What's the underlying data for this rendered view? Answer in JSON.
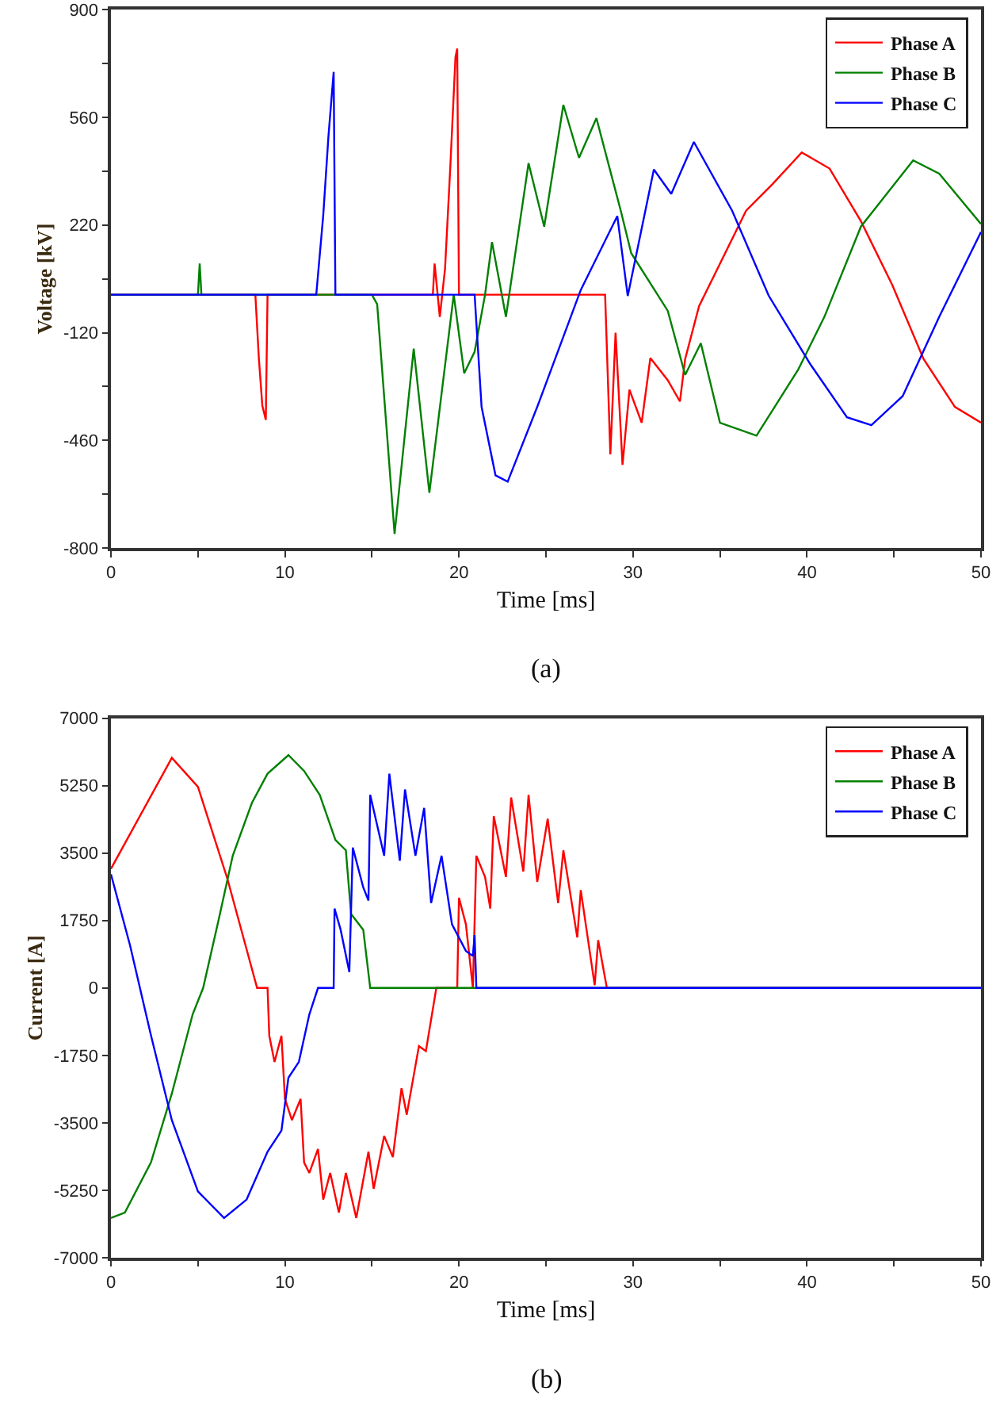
{
  "chart_data": [
    {
      "type": "line",
      "xlabel": "Time [ms]",
      "ylabel": "Voltage [kV]",
      "annotations": [
        "(a)"
      ],
      "legend": "top right",
      "xlim": [
        0,
        50
      ],
      "xticks": [
        0,
        {
          "value": 5,
          "label": null
        },
        10,
        {
          "value": 15,
          "label": null
        },
        20,
        {
          "value": 25,
          "label": null
        },
        30,
        {
          "value": 35,
          "label": null
        },
        40,
        {
          "value": 45,
          "label": null
        },
        50
      ],
      "ylim": [
        -800,
        900
      ],
      "yticks": [
        -800,
        {
          "value": -630,
          "label": null
        },
        -460,
        {
          "value": -290,
          "label": null
        },
        -120,
        {
          "value": 50,
          "label": null
        },
        220,
        {
          "value": 390,
          "label": null
        },
        560,
        {
          "value": 730,
          "label": null
        },
        900
      ],
      "series": [
        {
          "name": "Phase A",
          "color": "#ff0000",
          "x": [
            0,
            8.3,
            8.5,
            8.7,
            8.9,
            9.0,
            18.5,
            18.6,
            18.9,
            19.2,
            19.5,
            19.8,
            19.9,
            20.0,
            28.4,
            28.7,
            29.0,
            29.4,
            29.8,
            30.5,
            31.0,
            32.0,
            32.7,
            33.0,
            33.8,
            35.0,
            36.5,
            38.0,
            39.7,
            41.3,
            43.1,
            44.9,
            46.7,
            48.5,
            50
          ],
          "values": [
            0,
            0,
            -200,
            -350,
            -395,
            0,
            0,
            98,
            -70,
            82,
            400,
            750,
            777,
            0,
            0,
            -504,
            -120,
            -537,
            -300,
            -404,
            -200,
            -270,
            -337,
            -203,
            -36,
            98,
            265,
            348,
            449,
            398,
            232,
            31,
            -203,
            -354,
            -404
          ]
        },
        {
          "name": "Phase B",
          "color": "#008000",
          "x": [
            0,
            3.0,
            5.0,
            5.1,
            5.2,
            15.0,
            15.3,
            16.3,
            17.4,
            18.3,
            19.7,
            20.3,
            20.9,
            21.5,
            21.9,
            22.7,
            24.0,
            24.9,
            26.0,
            26.9,
            27.9,
            29.3,
            29.9,
            32.0,
            33.0,
            33.9,
            35.0,
            37.1,
            39.5,
            41.0,
            43.1,
            46.1,
            47.6,
            50
          ],
          "values": [
            0,
            0,
            0,
            98,
            0,
            0,
            -30,
            -755,
            -170,
            -625,
            0,
            -248,
            -180,
            0,
            166,
            -70,
            415,
            215,
            599,
            432,
            557,
            265,
            131,
            -51,
            -253,
            -153,
            -404,
            -445,
            -236,
            -70,
            215,
            424,
            382,
            223
          ]
        },
        {
          "name": "Phase C",
          "color": "#0000ff",
          "x": [
            0,
            11.8,
            12.2,
            12.5,
            12.8,
            12.9,
            20.9,
            21.3,
            22.1,
            22.8,
            24.5,
            27.0,
            29.1,
            29.7,
            31.2,
            32.2,
            33.5,
            35.7,
            37.8,
            40.2,
            42.3,
            43.7,
            45.5,
            47.6,
            50
          ],
          "values": [
            0,
            0,
            250,
            500,
            703,
            0,
            0,
            -354,
            -570,
            -590,
            -354,
            15,
            248,
            -4,
            395,
            318,
            482,
            265,
            -3,
            -220,
            -387,
            -412,
            -320,
            -70,
            198
          ]
        }
      ]
    },
    {
      "type": "line",
      "xlabel": "Time [ms]",
      "ylabel": "Current [A]",
      "annotations": [
        "(b)"
      ],
      "legend": "top right",
      "xlim": [
        0,
        50
      ],
      "xticks": [
        0,
        {
          "value": 5,
          "label": null
        },
        10,
        {
          "value": 15,
          "label": null
        },
        20,
        {
          "value": 25,
          "label": null
        },
        30,
        {
          "value": 35,
          "label": null
        },
        40,
        {
          "value": 45,
          "label": null
        },
        50
      ],
      "ylim": [
        -7000,
        7000
      ],
      "yticks": [
        -7000,
        -5250,
        -3500,
        -1750,
        0,
        1750,
        3500,
        5250,
        7000
      ],
      "series": [
        {
          "name": "Phase A",
          "color": "#ff0000",
          "x": [
            0,
            3.5,
            5.0,
            6.7,
            8.4,
            9.0,
            9.1,
            9.4,
            9.8,
            10.0,
            10.4,
            10.9,
            11.1,
            11.4,
            11.9,
            12.2,
            12.6,
            13.1,
            13.5,
            14.1,
            14.8,
            15.1,
            15.7,
            16.2,
            16.7,
            17.0,
            17.7,
            18.1,
            18.7,
            19.9,
            20.0,
            20.4,
            20.8,
            21.0,
            21.5,
            21.8,
            22.0,
            22.7,
            23.0,
            23.7,
            24.0,
            24.5,
            25.1,
            25.7,
            26.0,
            26.8,
            27.0,
            27.8,
            28.0,
            28.5,
            50
          ],
          "values": [
            3090,
            5970,
            5220,
            2820,
            0,
            0,
            -1240,
            -1920,
            -1240,
            -2880,
            -3430,
            -2880,
            -4530,
            -4800,
            -4180,
            -5490,
            -4800,
            -5830,
            -4800,
            -5970,
            -4250,
            -5210,
            -3840,
            -4390,
            -2600,
            -3290,
            -1510,
            -1640,
            0,
            0,
            2340,
            1650,
            0,
            3430,
            2880,
            2060,
            4460,
            2880,
            4940,
            3020,
            5010,
            2750,
            4390,
            2200,
            3570,
            1310,
            2540,
            70,
            1240,
            0,
            0
          ]
        },
        {
          "name": "Phase B",
          "color": "#008000",
          "x": [
            0,
            0.8,
            2.3,
            3.5,
            4.7,
            5.3,
            6.2,
            7.0,
            8.1,
            9.0,
            10.2,
            11.1,
            12.0,
            12.9,
            13.5,
            13.8,
            14.5,
            14.9,
            50
          ],
          "values": [
            -5970,
            -5830,
            -4530,
            -2740,
            -680,
            0,
            1790,
            3430,
            4800,
            5560,
            6040,
            5630,
            5010,
            3840,
            3570,
            1920,
            1510,
            0,
            0
          ]
        },
        {
          "name": "Phase C",
          "color": "#0000ff",
          "x": [
            0,
            1.1,
            2.3,
            3.5,
            5.0,
            6.5,
            7.8,
            9.0,
            9.8,
            10.2,
            10.8,
            11.4,
            11.9,
            12.8,
            12.85,
            13.2,
            13.7,
            13.9,
            14.5,
            14.8,
            14.9,
            15.7,
            16.0,
            16.6,
            16.9,
            17.5,
            18.0,
            18.4,
            19.0,
            19.6,
            20.4,
            20.8,
            20.9,
            21.0,
            50
          ],
          "values": [
            2950,
            1100,
            -1230,
            -3430,
            -5280,
            -5970,
            -5490,
            -4250,
            -3700,
            -2330,
            -1920,
            -690,
            0,
            0,
            2060,
            1510,
            410,
            3640,
            2610,
            2270,
            5010,
            3430,
            5560,
            3300,
            5150,
            3430,
            4670,
            2200,
            3430,
            1650,
            960,
            830,
            1370,
            0,
            0
          ]
        }
      ]
    }
  ]
}
